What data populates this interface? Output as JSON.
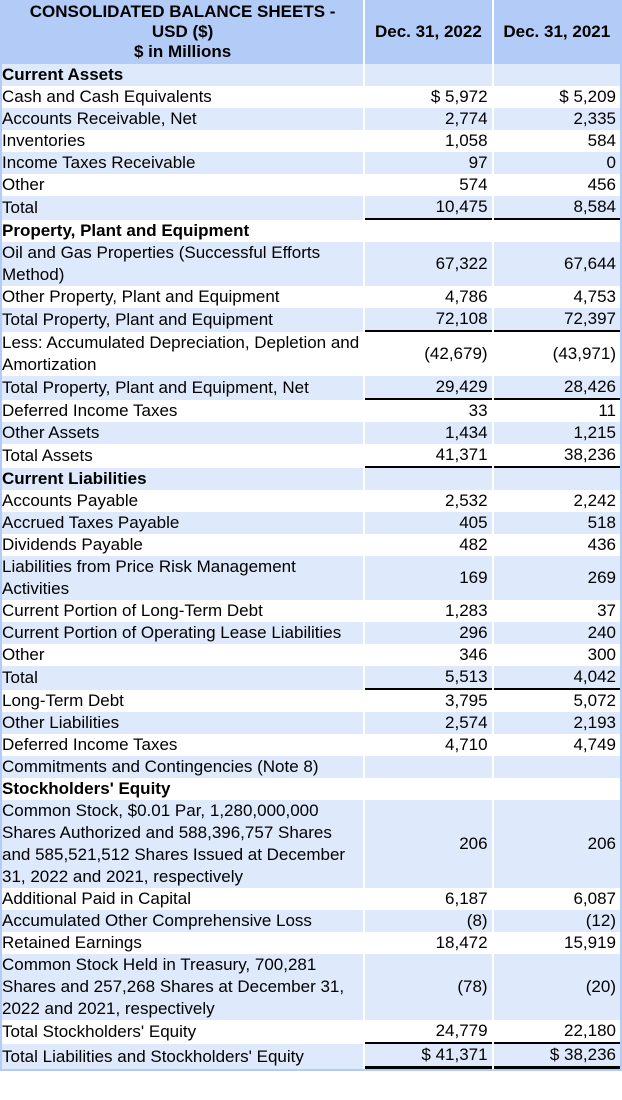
{
  "header": {
    "title_line1": "CONSOLIDATED BALANCE SHEETS -",
    "title_line2": "USD ($)",
    "title_line3": "$ in Millions",
    "col1": "Dec. 31, 2022",
    "col2": "Dec. 31, 2021"
  },
  "colors": {
    "header_bg": "#b3cbf7",
    "stripe_bg": "#dee9fb"
  },
  "rows": [
    {
      "label": "Current Assets",
      "v2022": "",
      "v2021": "",
      "bold": true
    },
    {
      "label": "Cash and Cash Equivalents",
      "v2022": "$ 5,972",
      "v2021": "$ 5,209"
    },
    {
      "label": "Accounts Receivable, Net",
      "v2022": "2,774",
      "v2021": "2,335"
    },
    {
      "label": "Inventories",
      "v2022": "1,058",
      "v2021": "584"
    },
    {
      "label": "Income Taxes Receivable",
      "v2022": "97",
      "v2021": "0"
    },
    {
      "label": "Other",
      "v2022": "574",
      "v2021": "456"
    },
    {
      "label": "Total",
      "v2022": "10,475",
      "v2021": "8,584",
      "total": true
    },
    {
      "label": "Property, Plant and Equipment",
      "v2022": "",
      "v2021": "",
      "bold": true
    },
    {
      "label": "Oil and Gas Properties (Successful Efforts Method)",
      "v2022": "67,322",
      "v2021": "67,644"
    },
    {
      "label": "Other Property, Plant and Equipment",
      "v2022": "4,786",
      "v2021": "4,753"
    },
    {
      "label": "Total Property, Plant and Equipment",
      "v2022": "72,108",
      "v2021": "72,397",
      "total": true
    },
    {
      "label": "Less: Accumulated Depreciation, Depletion and Amortization",
      "v2022": "(42,679)",
      "v2021": "(43,971)"
    },
    {
      "label": "Total Property, Plant and Equipment, Net",
      "v2022": "29,429",
      "v2021": "28,426",
      "total": true
    },
    {
      "label": "Deferred Income Taxes",
      "v2022": "33",
      "v2021": "11"
    },
    {
      "label": "Other Assets",
      "v2022": "1,434",
      "v2021": "1,215"
    },
    {
      "label": "Total Assets",
      "v2022": "41,371",
      "v2021": "38,236",
      "total": true
    },
    {
      "label": "Current Liabilities",
      "v2022": "",
      "v2021": "",
      "bold": true
    },
    {
      "label": "Accounts Payable",
      "v2022": "2,532",
      "v2021": "2,242"
    },
    {
      "label": "Accrued Taxes Payable",
      "v2022": "405",
      "v2021": "518"
    },
    {
      "label": "Dividends Payable",
      "v2022": "482",
      "v2021": "436"
    },
    {
      "label": "Liabilities from Price Risk Management Activities",
      "v2022": "169",
      "v2021": "269"
    },
    {
      "label": "Current Portion of Long-Term Debt",
      "v2022": "1,283",
      "v2021": "37"
    },
    {
      "label": "Current Portion of Operating Lease Liabilities",
      "v2022": "296",
      "v2021": "240"
    },
    {
      "label": "Other",
      "v2022": "346",
      "v2021": "300"
    },
    {
      "label": "Total",
      "v2022": "5,513",
      "v2021": "4,042",
      "total": true
    },
    {
      "label": "Long-Term Debt",
      "v2022": "3,795",
      "v2021": "5,072"
    },
    {
      "label": "Other Liabilities",
      "v2022": "2,574",
      "v2021": "2,193"
    },
    {
      "label": "Deferred Income Taxes",
      "v2022": "4,710",
      "v2021": "4,749"
    },
    {
      "label": "Commitments and Contingencies (Note 8)",
      "v2022": "",
      "v2021": ""
    },
    {
      "label": "Stockholders' Equity",
      "v2022": "",
      "v2021": "",
      "bold": true
    },
    {
      "label": "Common Stock, $0.01 Par, 1,280,000,000 Shares Authorized and 588,396,757 Shares and 585,521,512 Shares Issued at December 31, 2022 and 2021, respectively",
      "v2022": "206",
      "v2021": "206"
    },
    {
      "label": "Additional Paid in Capital",
      "v2022": "6,187",
      "v2021": "6,087"
    },
    {
      "label": "Accumulated Other Comprehensive Loss",
      "v2022": "(8)",
      "v2021": "(12)"
    },
    {
      "label": "Retained Earnings",
      "v2022": "18,472",
      "v2021": "15,919"
    },
    {
      "label": "Common Stock Held in Treasury, 700,281 Shares and 257,268 Shares at December 31, 2022 and 2021, respectively",
      "v2022": "(78)",
      "v2021": "(20)"
    },
    {
      "label": "Total Stockholders' Equity",
      "v2022": "24,779",
      "v2021": "22,180",
      "total": true
    },
    {
      "label": "Total Liabilities and Stockholders' Equity",
      "v2022": "$ 41,371",
      "v2021": "$ 38,236",
      "grand": true
    }
  ]
}
